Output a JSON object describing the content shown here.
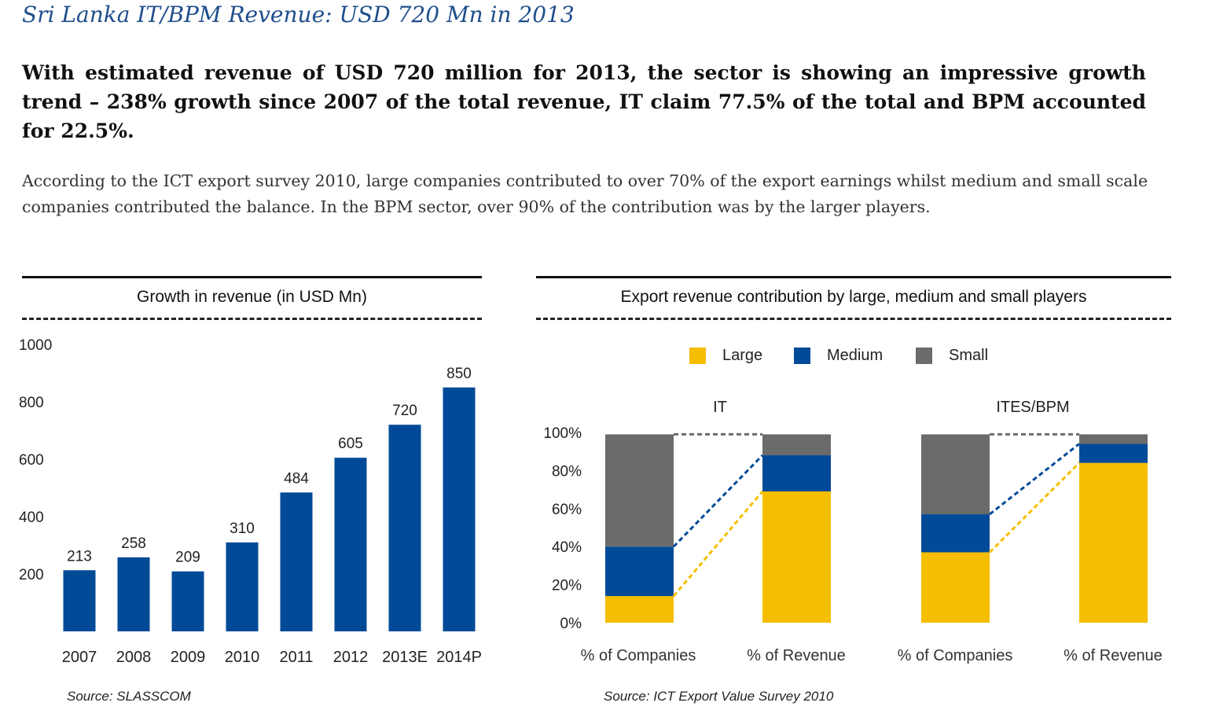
{
  "header": {
    "title": "Sri Lanka IT/BPM Revenue: USD 720 Mn in 2013",
    "lead": "With estimated revenue of USD 720 million for 2013, the sector is showing an impressive growth trend – 238% growth since 2007 of the total revenue, IT claim 77.5% of the total and BPM accounted for 22.5%.",
    "body": "According to the ICT export survey 2010, large companies contributed to over 70% of the export earnings whilst medium and small scale companies contributed the balance. In the BPM sector, over 90% of the contribution was by the larger players."
  },
  "sources": {
    "left": "Source: SLASSCOM",
    "right": "Source: ICT Export Value Survey 2010"
  },
  "colors": {
    "bar_blue": "#004a98",
    "large": "#f6be00",
    "medium": "#004a98",
    "small": "#6b6b6b"
  },
  "chart_data": [
    {
      "type": "bar",
      "title": "Growth in revenue (in USD Mn)",
      "categories": [
        "2007",
        "2008",
        "2009",
        "2010",
        "2011",
        "2012",
        "2013E",
        "2014P"
      ],
      "values": [
        213,
        258,
        209,
        310,
        484,
        605,
        720,
        850
      ],
      "data_labels": [
        "213",
        "258",
        "209",
        "310",
        "484",
        "605",
        "720",
        "850"
      ],
      "yticks": [
        "1000",
        "800",
        "600",
        "400",
        "200"
      ],
      "ylim": [
        0,
        1000
      ],
      "grid": false,
      "xlabel": "",
      "ylabel": ""
    },
    {
      "type": "bar",
      "stacked": true,
      "title": "Export revenue contribution by large, medium and small players",
      "legend": [
        "Large",
        "Medium",
        "Small"
      ],
      "legend_position": "top",
      "yticks": [
        "100%",
        "80%",
        "60%",
        "40%",
        "20%",
        "0%"
      ],
      "ylim": [
        0,
        100
      ],
      "groups": [
        {
          "name": "IT",
          "categories": [
            "% of Companies",
            "% of Revenue"
          ],
          "series": [
            {
              "name": "Large",
              "values": [
                14,
                69
              ]
            },
            {
              "name": "Medium",
              "values": [
                26,
                19
              ]
            },
            {
              "name": "Small",
              "values": [
                59,
                11
              ]
            }
          ]
        },
        {
          "name": "ITES/BPM",
          "categories": [
            "% of Companies",
            "% of Revenue"
          ],
          "series": [
            {
              "name": "Large",
              "values": [
                37,
                84
              ]
            },
            {
              "name": "Medium",
              "values": [
                20,
                10
              ]
            },
            {
              "name": "Small",
              "values": [
                42,
                5
              ]
            }
          ]
        }
      ]
    }
  ]
}
